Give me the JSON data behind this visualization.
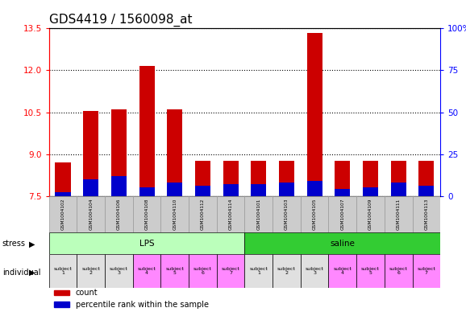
{
  "title": "GDS4419 / 1560098_at",
  "samples": [
    "GSM1004102",
    "GSM1004104",
    "GSM1004106",
    "GSM1004108",
    "GSM1004110",
    "GSM1004112",
    "GSM1004114",
    "GSM1004101",
    "GSM1004103",
    "GSM1004105",
    "GSM1004107",
    "GSM1004109",
    "GSM1004111",
    "GSM1004113"
  ],
  "count_values": [
    8.7,
    10.55,
    10.6,
    12.15,
    10.6,
    8.75,
    8.75,
    8.75,
    8.75,
    13.35,
    8.75,
    8.75,
    8.75,
    8.75
  ],
  "percentile_values": [
    2,
    10,
    12,
    5,
    8,
    6,
    7,
    7,
    8,
    9,
    4,
    5,
    8,
    6
  ],
  "y_min": 7.5,
  "y_max": 13.5,
  "y_ticks_left": [
    7.5,
    9.0,
    10.5,
    12.0,
    13.5
  ],
  "y_ticks_right": [
    0,
    25,
    50,
    75,
    100
  ],
  "bar_bottom": 7.5,
  "stress_groups": [
    {
      "label": "LPS",
      "start": 0,
      "end": 7,
      "color": "#bbffbb"
    },
    {
      "label": "saline",
      "start": 7,
      "end": 14,
      "color": "#33cc33"
    }
  ],
  "individual_labels": [
    "subject\n1",
    "subject\n2",
    "subject\n3",
    "subject\n4",
    "subject\n5",
    "subject\n6",
    "subject\n7",
    "subject\n1",
    "subject\n2",
    "subject\n3",
    "subject\n4",
    "subject\n5",
    "subject\n6",
    "subject\n7"
  ],
  "ind_colors": [
    "#e0e0e0",
    "#e0e0e0",
    "#e0e0e0",
    "#ff88ff",
    "#ff88ff",
    "#ff88ff",
    "#ff88ff",
    "#e0e0e0",
    "#e0e0e0",
    "#e0e0e0",
    "#ff88ff",
    "#ff88ff",
    "#ff88ff",
    "#ff88ff"
  ],
  "count_color": "#cc0000",
  "percentile_color": "#0000cc",
  "bar_width": 0.55,
  "background_color": "#ffffff",
  "tick_fontsize": 7.5,
  "label_fontsize": 7,
  "title_fontsize": 11
}
